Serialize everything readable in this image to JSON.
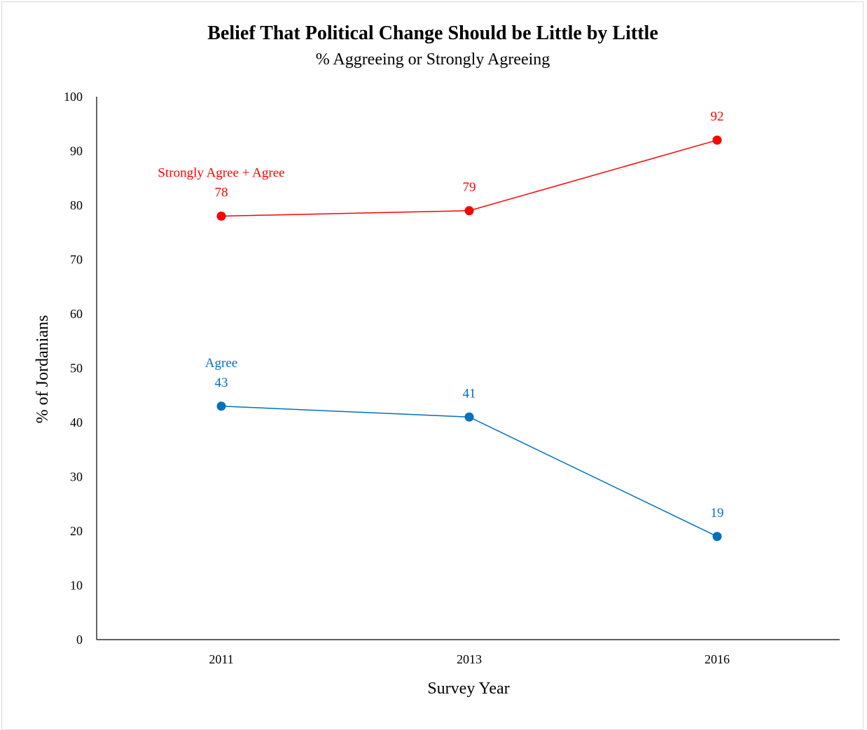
{
  "chart_data": {
    "type": "line",
    "title": "Belief That Political Change Should be Little by Little",
    "subtitle": "% Aggreeing or Strongly Agreeing",
    "xlabel": "Survey Year",
    "ylabel": "% of Jordanians",
    "categories": [
      "2011",
      "2013",
      "2016"
    ],
    "ylim": [
      0,
      100
    ],
    "yticks": [
      0,
      10,
      20,
      30,
      40,
      50,
      60,
      70,
      80,
      90,
      100
    ],
    "grid": false,
    "series": [
      {
        "name": "Strongly Agree + Agree",
        "values": [
          78,
          79,
          92
        ],
        "color": "#ff0000"
      },
      {
        "name": "Agree",
        "values": [
          43,
          41,
          19
        ],
        "color": "#0070c0"
      }
    ]
  }
}
